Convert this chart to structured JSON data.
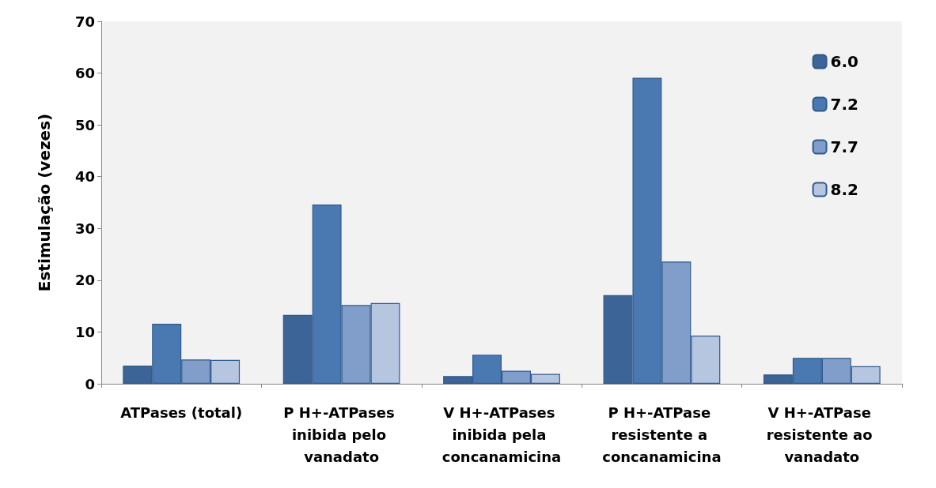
{
  "chart_data": {
    "type": "bar",
    "ylabel": "Estimulação (vezes)",
    "categories": [
      "ATPases (total)",
      "P H+-ATPases inibida pelo vanadato",
      "V H+-ATPases inibida pela concanamicina",
      "P H+-ATPase resistente a concanamicina",
      "V H+-ATPase resistente ao vanadato"
    ],
    "series": [
      {
        "name": "6.0",
        "color": "#3c6496",
        "values": [
          3.5,
          13.3,
          1.5,
          17.1,
          1.8
        ]
      },
      {
        "name": "7.2",
        "color": "#4a78b0",
        "values": [
          11.6,
          34.6,
          5.6,
          59.1,
          5.0
        ]
      },
      {
        "name": "7.7",
        "color": "#809ec9",
        "values": [
          4.7,
          15.2,
          2.5,
          23.6,
          5.0
        ]
      },
      {
        "name": "8.2",
        "color": "#b6c5e0",
        "values": [
          4.6,
          15.6,
          1.9,
          9.3,
          3.4
        ]
      }
    ],
    "ylim": [
      0,
      70
    ],
    "yticks": [
      0,
      10,
      20,
      30,
      40,
      50,
      60,
      70
    ],
    "grid": false,
    "legend": "top right"
  }
}
